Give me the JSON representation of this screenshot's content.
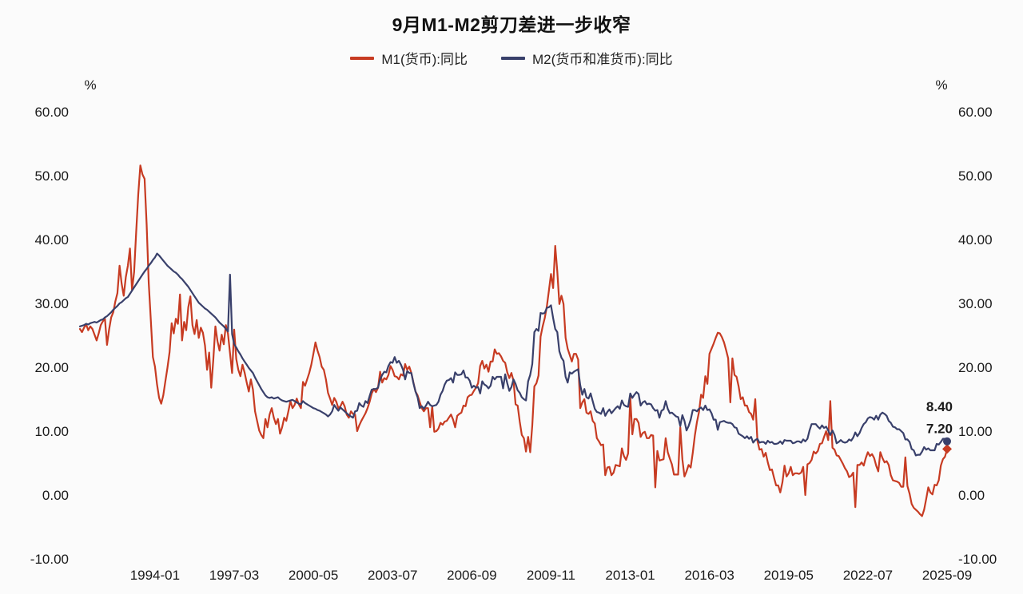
{
  "chart_data": {
    "type": "line",
    "title": "9月M1-M2剪刀差进一步收窄",
    "start": "1991-01",
    "freq": "monthly",
    "y_axis": {
      "min": -10,
      "max": 60,
      "step": 10,
      "unit": "%",
      "tick_decimals": 2
    },
    "x_ticks": [
      "1994-01",
      "1997-03",
      "2000-05",
      "2003-07",
      "2006-09",
      "2009-11",
      "2013-01",
      "2016-03",
      "2019-05",
      "2022-07",
      "2025-09"
    ],
    "grid": false,
    "legend_position": "top-center",
    "series": [
      {
        "name": "M1(货币):同比",
        "color": "#c73b22",
        "end_label": "7.20",
        "end_marker": "diamond",
        "values": [
          26.0,
          25.5,
          26.2,
          26.7,
          25.8,
          26.4,
          26.0,
          25.1,
          24.2,
          25.3,
          26.6,
          27.2,
          27.6,
          23.5,
          25.9,
          27.8,
          28.6,
          30.3,
          31.6,
          35.9,
          33.1,
          31.2,
          34.1,
          35.9,
          38.6,
          32.1,
          34.9,
          41.2,
          47.1,
          51.6,
          50.2,
          49.5,
          42.3,
          33.2,
          27.4,
          21.6,
          20.1,
          17.3,
          15.2,
          14.3,
          15.6,
          17.8,
          19.9,
          22.4,
          26.9,
          25.3,
          27.6,
          26.8,
          31.4,
          24.2,
          27.1,
          25.8,
          29.4,
          31.1,
          26.6,
          25.2,
          27.4,
          24.6,
          26.2,
          25.4,
          23.4,
          19.6,
          22.3,
          16.8,
          21.2,
          26.4,
          24.1,
          22.6,
          25.1,
          23.6,
          26.6,
          25.3,
          22.2,
          19.1,
          25.9,
          21.3,
          19.6,
          18.6,
          20.4,
          19.2,
          17.6,
          16.2,
          18.1,
          16.5,
          13.1,
          11.6,
          10.1,
          9.4,
          8.9,
          11.9,
          10.6,
          12.6,
          13.6,
          12.1,
          11.1,
          11.9,
          9.6,
          10.6,
          12.1,
          11.6,
          13.1,
          14.7,
          13.6,
          14.1,
          15.1,
          14.2,
          13.6,
          17.7,
          17.1,
          18.1,
          19.1,
          20.4,
          22.1,
          23.9,
          22.6,
          21.6,
          20.1,
          19.6,
          18.1,
          16.0,
          15.1,
          14.1,
          15.2,
          14.6,
          13.6,
          13.9,
          14.6,
          13.9,
          12.6,
          12.1,
          13.1,
          12.7,
          12.6,
          10.0,
          10.9,
          11.6,
          12.2,
          12.8,
          13.6,
          14.6,
          15.9,
          16.6,
          16.1,
          16.8,
          19.3,
          17.6,
          18.3,
          18.1,
          18.8,
          20.2,
          19.6,
          18.6,
          18.5,
          18.1,
          18.9,
          18.7,
          20.5,
          19.6,
          20.1,
          19.1,
          17.6,
          16.2,
          15.6,
          14.6,
          13.6,
          13.1,
          13.6,
          13.6,
          10.6,
          13.9,
          9.9,
          10.0,
          10.4,
          11.3,
          11.0,
          11.5,
          11.6,
          12.1,
          12.6,
          11.8,
          10.6,
          12.4,
          12.7,
          12.9,
          14.0,
          13.9,
          15.3,
          15.6,
          15.7,
          16.3,
          16.8,
          17.5,
          20.2,
          21.0,
          19.8,
          20.4,
          19.3,
          20.9,
          20.9,
          22.8,
          22.1,
          22.2,
          21.7,
          21.0,
          20.7,
          19.2,
          18.3,
          19.1,
          17.9,
          14.2,
          14.0,
          11.5,
          9.4,
          8.9,
          6.8,
          9.1,
          6.7,
          10.9,
          17.0,
          17.5,
          18.7,
          24.8,
          26.4,
          27.7,
          29.5,
          32.0,
          34.6,
          32.4,
          39.0,
          35.0,
          29.9,
          31.2,
          29.9,
          24.6,
          22.9,
          21.9,
          20.9,
          22.1,
          22.1,
          21.2,
          13.6,
          14.5,
          15.0,
          12.9,
          12.7,
          13.1,
          11.6,
          11.2,
          8.9,
          8.4,
          7.8,
          7.9,
          3.1,
          4.3,
          4.4,
          3.1,
          3.5,
          4.7,
          4.6,
          4.5,
          7.3,
          6.1,
          5.5,
          6.5,
          15.3,
          9.5,
          11.9,
          11.9,
          11.3,
          9.1,
          9.7,
          9.9,
          8.9,
          8.9,
          9.4,
          9.3,
          1.2,
          6.9,
          5.4,
          5.5,
          5.6,
          8.9,
          6.7,
          5.7,
          4.8,
          3.2,
          3.2,
          3.2,
          10.6,
          5.6,
          2.9,
          3.7,
          4.7,
          4.3,
          6.6,
          9.3,
          11.4,
          13.0,
          15.7,
          15.2,
          18.6,
          17.4,
          22.1,
          22.9,
          23.7,
          24.6,
          25.4,
          25.3,
          24.7,
          23.9,
          22.7,
          21.4,
          14.5,
          21.4,
          18.8,
          18.5,
          17.0,
          15.0,
          15.3,
          14.0,
          14.0,
          13.0,
          12.7,
          11.8,
          15.0,
          8.5,
          7.1,
          7.2,
          6.0,
          6.6,
          5.1,
          3.9,
          4.0,
          2.7,
          1.5,
          1.5,
          0.4,
          2.0,
          4.6,
          2.9,
          3.4,
          4.4,
          3.1,
          3.4,
          3.4,
          3.3,
          3.5,
          4.4,
          0.0,
          4.8,
          5.0,
          5.5,
          6.8,
          6.5,
          6.9,
          8.0,
          8.1,
          9.1,
          10.0,
          8.6,
          14.7,
          7.4,
          7.1,
          6.2,
          6.1,
          5.5,
          4.9,
          4.2,
          3.7,
          2.8,
          3.0,
          3.5,
          -1.9,
          4.7,
          4.7,
          5.1,
          4.6,
          5.8,
          6.7,
          6.1,
          6.4,
          5.8,
          4.6,
          3.7,
          6.7,
          5.8,
          5.1,
          5.3,
          4.7,
          3.1,
          2.3,
          2.2,
          2.1,
          1.9,
          1.3,
          1.3,
          5.9,
          1.4,
          0.2,
          -1.4,
          -2.0,
          -2.3,
          -2.6,
          -3.0,
          -3.3,
          -2.3,
          -0.6,
          1.2,
          0.4,
          0.1,
          1.6,
          1.5,
          2.3,
          4.6,
          5.6,
          6.0,
          7.2
        ]
      },
      {
        "name": "M2(货币和准货币):同比",
        "color": "#39406b",
        "end_label": "8.40",
        "end_marker": "circle",
        "values": [
          26.4,
          26.5,
          26.6,
          26.8,
          26.7,
          26.9,
          27.0,
          27.1,
          27.0,
          27.2,
          27.4,
          27.5,
          27.8,
          28.0,
          28.3,
          28.6,
          29.0,
          29.3,
          29.6,
          30.0,
          30.2,
          30.5,
          30.8,
          31.0,
          31.5,
          32.0,
          32.5,
          33.0,
          33.5,
          34.0,
          34.5,
          35.0,
          35.4,
          35.9,
          36.3,
          36.8,
          37.2,
          37.8,
          37.5,
          37.1,
          36.7,
          36.3,
          35.9,
          35.6,
          35.3,
          35.0,
          34.8,
          34.5,
          34.1,
          33.8,
          33.4,
          33.0,
          32.6,
          32.1,
          31.6,
          31.1,
          30.6,
          30.1,
          29.8,
          29.5,
          29.2,
          29.0,
          28.7,
          28.4,
          28.1,
          27.8,
          27.4,
          27.0,
          26.7,
          26.4,
          26.0,
          25.6,
          34.5,
          25.2,
          23.6,
          23.1,
          22.5,
          22.0,
          21.4,
          20.9,
          20.4,
          19.9,
          19.5,
          19.1,
          18.4,
          17.8,
          17.2,
          16.6,
          16.1,
          15.6,
          15.3,
          15.2,
          15.3,
          15.1,
          15.2,
          15.3,
          15.0,
          14.8,
          14.7,
          14.6,
          14.7,
          14.8,
          14.9,
          14.7,
          14.5,
          14.3,
          14.2,
          14.7,
          14.4,
          14.2,
          14.0,
          13.8,
          13.6,
          13.5,
          13.3,
          13.2,
          13.0,
          12.8,
          12.6,
          12.3,
          12.6,
          13.1,
          14.1,
          13.6,
          13.2,
          13.7,
          13.4,
          13.1,
          12.8,
          12.5,
          12.3,
          12.1,
          13.1,
          13.2,
          14.4,
          14.0,
          13.8,
          14.7,
          14.4,
          15.5,
          16.5,
          16.6,
          16.6,
          16.8,
          18.1,
          18.8,
          19.3,
          19.2,
          20.2,
          20.8,
          20.7,
          21.6,
          20.7,
          21.0,
          20.4,
          19.6,
          18.1,
          19.4,
          19.1,
          19.1,
          17.5,
          16.2,
          15.3,
          13.6,
          13.9,
          13.5,
          14.0,
          14.6,
          14.1,
          13.9,
          14.0,
          14.1,
          14.6,
          15.7,
          16.3,
          17.3,
          17.9,
          18.0,
          18.3,
          17.6,
          19.2,
          18.8,
          18.8,
          18.9,
          19.5,
          18.4,
          18.4,
          17.9,
          16.8,
          17.1,
          16.8,
          16.9,
          15.9,
          17.8,
          17.3,
          17.1,
          16.7,
          17.1,
          18.5,
          18.1,
          18.5,
          18.5,
          18.5,
          16.7,
          18.9,
          17.5,
          16.3,
          16.9,
          18.1,
          17.4,
          16.4,
          16.0,
          15.3,
          15.0,
          14.8,
          17.8,
          18.8,
          20.5,
          25.5,
          26.0,
          25.7,
          28.5,
          28.4,
          28.5,
          29.3,
          29.4,
          29.7,
          27.7,
          26.0,
          25.5,
          22.5,
          21.5,
          21.0,
          18.5,
          17.6,
          19.2,
          19.0,
          19.3,
          19.5,
          19.7,
          17.2,
          15.7,
          16.6,
          15.3,
          15.1,
          15.9,
          14.7,
          13.5,
          13.0,
          12.9,
          12.7,
          13.6,
          12.4,
          13.0,
          13.4,
          12.8,
          13.2,
          13.6,
          13.9,
          13.5,
          14.8,
          14.1,
          13.9,
          13.8,
          15.9,
          15.2,
          15.7,
          16.1,
          15.8,
          14.0,
          14.5,
          14.7,
          14.2,
          14.3,
          14.2,
          13.6,
          13.2,
          13.3,
          12.1,
          13.2,
          13.4,
          14.7,
          13.5,
          12.8,
          12.9,
          12.6,
          12.3,
          12.2,
          10.8,
          12.5,
          11.6,
          10.1,
          10.8,
          11.8,
          13.3,
          13.3,
          13.1,
          13.5,
          13.7,
          13.3,
          14.0,
          13.3,
          13.4,
          12.8,
          11.8,
          11.8,
          10.2,
          11.4,
          11.5,
          11.6,
          11.4,
          11.3,
          11.3,
          11.1,
          10.6,
          10.5,
          9.6,
          9.4,
          9.2,
          8.9,
          9.2,
          8.8,
          9.1,
          8.2,
          8.6,
          8.8,
          8.2,
          8.3,
          8.3,
          8.0,
          8.5,
          8.2,
          8.3,
          8.0,
          8.0,
          8.1,
          8.4,
          8.0,
          8.6,
          8.5,
          8.5,
          8.5,
          8.1,
          8.2,
          8.4,
          8.4,
          8.2,
          8.7,
          8.4,
          8.8,
          10.1,
          11.1,
          11.1,
          11.1,
          10.7,
          10.4,
          10.9,
          10.5,
          10.7,
          10.1,
          9.4,
          10.1,
          9.4,
          8.1,
          8.3,
          8.6,
          8.3,
          8.2,
          8.3,
          8.7,
          8.5,
          9.0,
          9.8,
          9.2,
          9.7,
          10.5,
          11.1,
          11.4,
          12.0,
          12.2,
          12.1,
          11.8,
          12.4,
          11.8,
          12.6,
          12.9,
          12.7,
          12.4,
          11.6,
          11.3,
          10.7,
          10.6,
          10.3,
          10.3,
          10.0,
          9.7,
          8.7,
          8.7,
          8.3,
          7.2,
          7.0,
          6.2,
          6.3,
          6.3,
          6.8,
          7.5,
          7.1,
          7.3,
          7.0,
          7.0,
          7.0,
          8.0,
          7.9,
          8.3,
          8.8,
          8.8,
          8.4
        ]
      }
    ]
  }
}
